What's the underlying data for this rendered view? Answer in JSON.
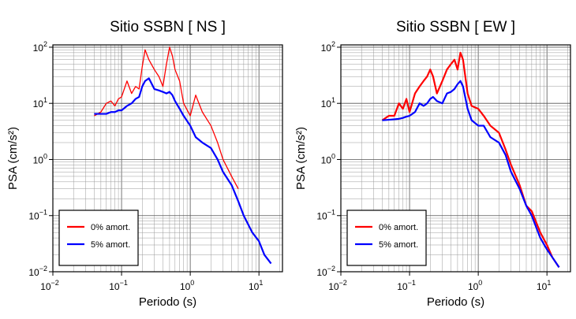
{
  "chart_data": [
    {
      "type": "line",
      "title": "Sitio SSBN [ NS ]",
      "x_label": "Periodo (s)",
      "y_label": "PSA (cm/s²)",
      "x_scale": "log",
      "y_scale": "log",
      "grid": true,
      "legend": "lower left",
      "xlim": [
        0.01,
        22
      ],
      "ylim": [
        0.01,
        110
      ],
      "xticks": [
        {
          "value": 0.01,
          "label": "10",
          "exp": "−2"
        },
        {
          "value": 0.1,
          "label": "10",
          "exp": "−1"
        },
        {
          "value": 1,
          "label": "10",
          "exp": "0"
        },
        {
          "value": 10,
          "label": "10",
          "exp": "1"
        }
      ],
      "yticks": [
        {
          "value": 0.01,
          "label": "10",
          "exp": "−2"
        },
        {
          "value": 0.1,
          "label": "10",
          "exp": "−1"
        },
        {
          "value": 1,
          "label": "10",
          "exp": "0"
        },
        {
          "value": 10,
          "label": "10",
          "exp": "1"
        },
        {
          "value": 100,
          "label": "10",
          "exp": "2"
        }
      ],
      "x": [
        0.04,
        0.05,
        0.06,
        0.07,
        0.08,
        0.09,
        0.1,
        0.12,
        0.14,
        0.16,
        0.18,
        0.2,
        0.22,
        0.25,
        0.3,
        0.35,
        0.4,
        0.45,
        0.5,
        0.55,
        0.6,
        0.7,
        0.8,
        1.0,
        1.2,
        1.5,
        2,
        2.5,
        3,
        4,
        5,
        6,
        8,
        10,
        12,
        15
      ],
      "series": [
        {
          "name": "0% amort.",
          "color": "#ff0000",
          "width": 1.3,
          "values": [
            6,
            7,
            10,
            11,
            9,
            12,
            13,
            25,
            15,
            20,
            18,
            45,
            90,
            60,
            40,
            30,
            20,
            50,
            100,
            70,
            40,
            25,
            10,
            6,
            14,
            7,
            4,
            2,
            1,
            0.5,
            0.3,
            null,
            null,
            null,
            null,
            null
          ]
        },
        {
          "name": "5% amort.",
          "color": "#0000ff",
          "width": 2.2,
          "values": [
            6.5,
            6.5,
            6.5,
            7,
            7,
            7.5,
            7.5,
            9,
            10,
            12,
            13,
            20,
            25,
            28,
            18,
            17,
            16,
            15,
            16,
            14,
            11,
            8,
            6,
            4,
            2.5,
            2,
            1.6,
            1,
            0.6,
            0.35,
            0.18,
            0.1,
            0.05,
            0.035,
            0.02,
            0.014
          ]
        }
      ]
    },
    {
      "type": "line",
      "title": "Sitio SSBN [ EW ]",
      "x_label": "Periodo (s)",
      "y_label": "PSA (cm/s²)",
      "x_scale": "log",
      "y_scale": "log",
      "grid": true,
      "legend": "lower left",
      "xlim": [
        0.01,
        22
      ],
      "ylim": [
        0.01,
        110
      ],
      "xticks": [
        {
          "value": 0.01,
          "label": "10",
          "exp": "−2"
        },
        {
          "value": 0.1,
          "label": "10",
          "exp": "−1"
        },
        {
          "value": 1,
          "label": "10",
          "exp": "0"
        },
        {
          "value": 10,
          "label": "10",
          "exp": "1"
        }
      ],
      "yticks": [
        {
          "value": 0.01,
          "label": "10",
          "exp": "−2"
        },
        {
          "value": 0.1,
          "label": "10",
          "exp": "−1"
        },
        {
          "value": 1,
          "label": "10",
          "exp": "0"
        },
        {
          "value": 10,
          "label": "10",
          "exp": "1"
        },
        {
          "value": 100,
          "label": "10",
          "exp": "2"
        }
      ],
      "x": [
        0.04,
        0.05,
        0.06,
        0.07,
        0.08,
        0.09,
        0.1,
        0.12,
        0.14,
        0.16,
        0.18,
        0.2,
        0.22,
        0.25,
        0.3,
        0.35,
        0.4,
        0.45,
        0.5,
        0.55,
        0.6,
        0.7,
        0.8,
        1.0,
        1.2,
        1.5,
        2,
        2.5,
        3,
        4,
        5,
        6,
        8,
        10,
        12,
        15
      ],
      "series": [
        {
          "name": "0% amort.",
          "color": "#ff0000",
          "width": 2.2,
          "values": [
            5,
            6,
            6,
            10,
            8,
            12,
            7,
            15,
            20,
            25,
            30,
            40,
            30,
            15,
            25,
            40,
            50,
            60,
            40,
            80,
            60,
            15,
            9,
            8,
            6,
            4,
            3,
            1.5,
            0.8,
            0.35,
            0.15,
            0.12,
            0.05,
            0.03,
            0.018,
            0.012
          ]
        },
        {
          "name": "5% amort.",
          "color": "#0000ff",
          "width": 2.2,
          "values": [
            5,
            5.1,
            5.2,
            5.3,
            5.5,
            5.8,
            6,
            7,
            10,
            9,
            10,
            12,
            13,
            11,
            10,
            15,
            16,
            18,
            22,
            25,
            20,
            8,
            5,
            4,
            4,
            2.5,
            2,
            1.2,
            0.6,
            0.3,
            0.15,
            0.1,
            0.04,
            0.025,
            0.018,
            0.012
          ]
        }
      ]
    }
  ]
}
